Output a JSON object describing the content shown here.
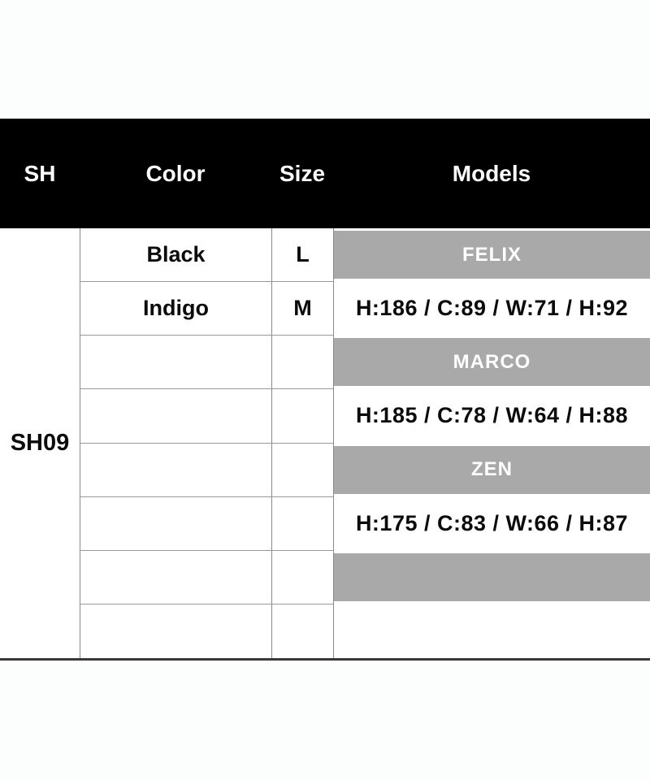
{
  "colors": {
    "page_background": "#fcfdfd",
    "header_background": "#000000",
    "header_text": "#ffffff",
    "band_gray": "#a9a9a9",
    "band_text": "#ffffff",
    "body_text": "#0b0b0b",
    "grid_line": "#8a8a8a",
    "bottom_rule": "#3a3a3a"
  },
  "header": {
    "sh": "SH",
    "color": "Color",
    "size": "Size",
    "models": "Models"
  },
  "table": {
    "product_code": "SH09",
    "rows": [
      {
        "color": "Black",
        "size": "L",
        "model": "FELIX"
      },
      {
        "color": "Indigo",
        "size": "M",
        "model": "H:186 / C:89 / W:71 / H:92"
      },
      {
        "color": "",
        "size": "",
        "model": "MARCO"
      },
      {
        "color": "",
        "size": "",
        "model": "H:185 / C:78 / W:64 / H:88"
      },
      {
        "color": "",
        "size": "",
        "model": "ZEN"
      },
      {
        "color": "",
        "size": "",
        "model": "H:175 / C:83 / W:66 / H:87"
      },
      {
        "color": "",
        "size": "",
        "model": ""
      },
      {
        "color": "",
        "size": "",
        "model": ""
      }
    ]
  }
}
